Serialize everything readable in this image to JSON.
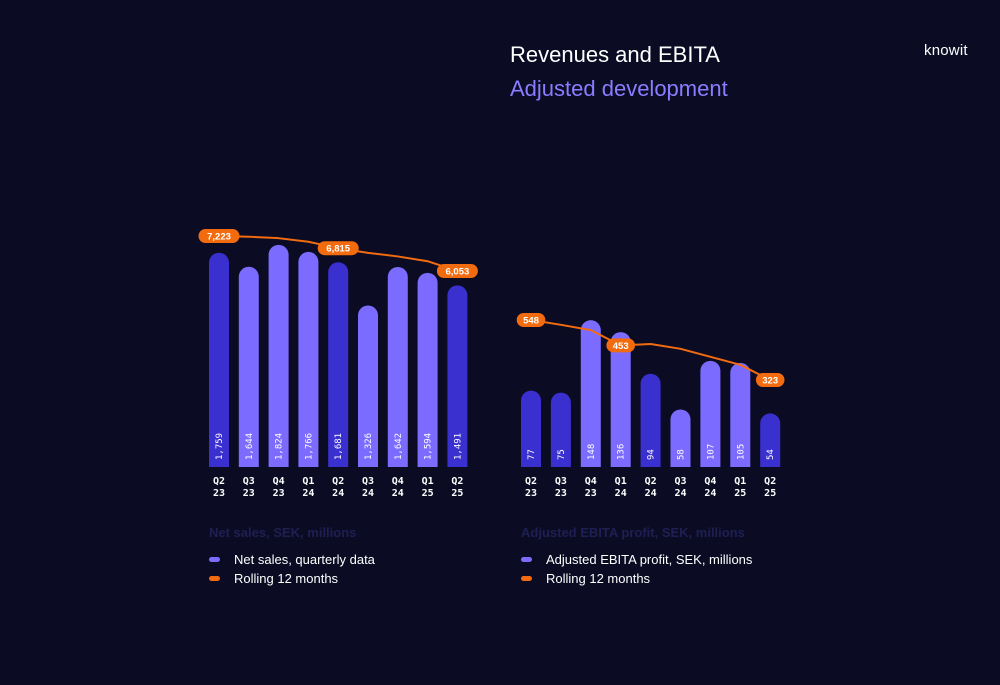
{
  "header": {
    "title": "Revenues and EBITA",
    "subtitle": "Adjusted development",
    "brand": "knowit"
  },
  "colors": {
    "background": "#0b0c24",
    "bar_dark": "#3a2fcf",
    "bar_light": "#7b6cff",
    "line": "#f26b0f",
    "subtitle": "#8b7cff"
  },
  "chart_data": [
    {
      "type": "bar",
      "caption": "Net sales, SEK, millions",
      "categories": [
        [
          "Q2",
          "23"
        ],
        [
          "Q3",
          "23"
        ],
        [
          "Q4",
          "23"
        ],
        [
          "Q1",
          "24"
        ],
        [
          "Q2",
          "24"
        ],
        [
          "Q3",
          "24"
        ],
        [
          "Q4",
          "24"
        ],
        [
          "Q1",
          "25"
        ],
        [
          "Q2",
          "25"
        ]
      ],
      "series": [
        {
          "name": "Net sales, quarterly data",
          "values": [
            1759,
            1644,
            1824,
            1766,
            1681,
            1326,
            1642,
            1594,
            1491
          ],
          "labels": [
            "1,759",
            "1,644",
            "1,824",
            "1,766",
            "1,681",
            "1,326",
            "1,642",
            "1,594",
            "1,491"
          ],
          "shade": [
            "dark",
            "light",
            "light",
            "light",
            "dark",
            "light",
            "light",
            "light",
            "dark"
          ]
        },
        {
          "name": "Rolling 12 months",
          "type": "line",
          "values": [
            7223,
            7200,
            7150,
            7030,
            6815,
            6660,
            6540,
            6380,
            6053
          ],
          "callouts": [
            {
              "index": 0,
              "label": "7,223"
            },
            {
              "index": 4,
              "label": "6,815"
            },
            {
              "index": 8,
              "label": "6,053"
            }
          ]
        }
      ]
    },
    {
      "type": "bar",
      "caption": "Adjusted EBITA profit, SEK, millions",
      "categories": [
        [
          "Q2",
          "23"
        ],
        [
          "Q3",
          "23"
        ],
        [
          "Q4",
          "23"
        ],
        [
          "Q1",
          "24"
        ],
        [
          "Q2",
          "24"
        ],
        [
          "Q3",
          "24"
        ],
        [
          "Q4",
          "24"
        ],
        [
          "Q1",
          "25"
        ],
        [
          "Q2",
          "25"
        ]
      ],
      "series": [
        {
          "name": "Adjusted EBITA profit, SEK, millions",
          "values": [
            77,
            75,
            148,
            136,
            94,
            58,
            107,
            105,
            54
          ],
          "labels": [
            "77",
            "75",
            "148",
            "136",
            "94",
            "58",
            "107",
            "105",
            "54"
          ],
          "shade": [
            "dark",
            "dark",
            "light",
            "light",
            "dark",
            "light",
            "light",
            "light",
            "dark"
          ]
        },
        {
          "name": "Rolling 12 months",
          "type": "line",
          "values": [
            548,
            530,
            510,
            453,
            458,
            440,
            410,
            380,
            323
          ],
          "callouts": [
            {
              "index": 0,
              "label": "548"
            },
            {
              "index": 3,
              "label": "453"
            },
            {
              "index": 8,
              "label": "323"
            }
          ]
        }
      ]
    }
  ]
}
